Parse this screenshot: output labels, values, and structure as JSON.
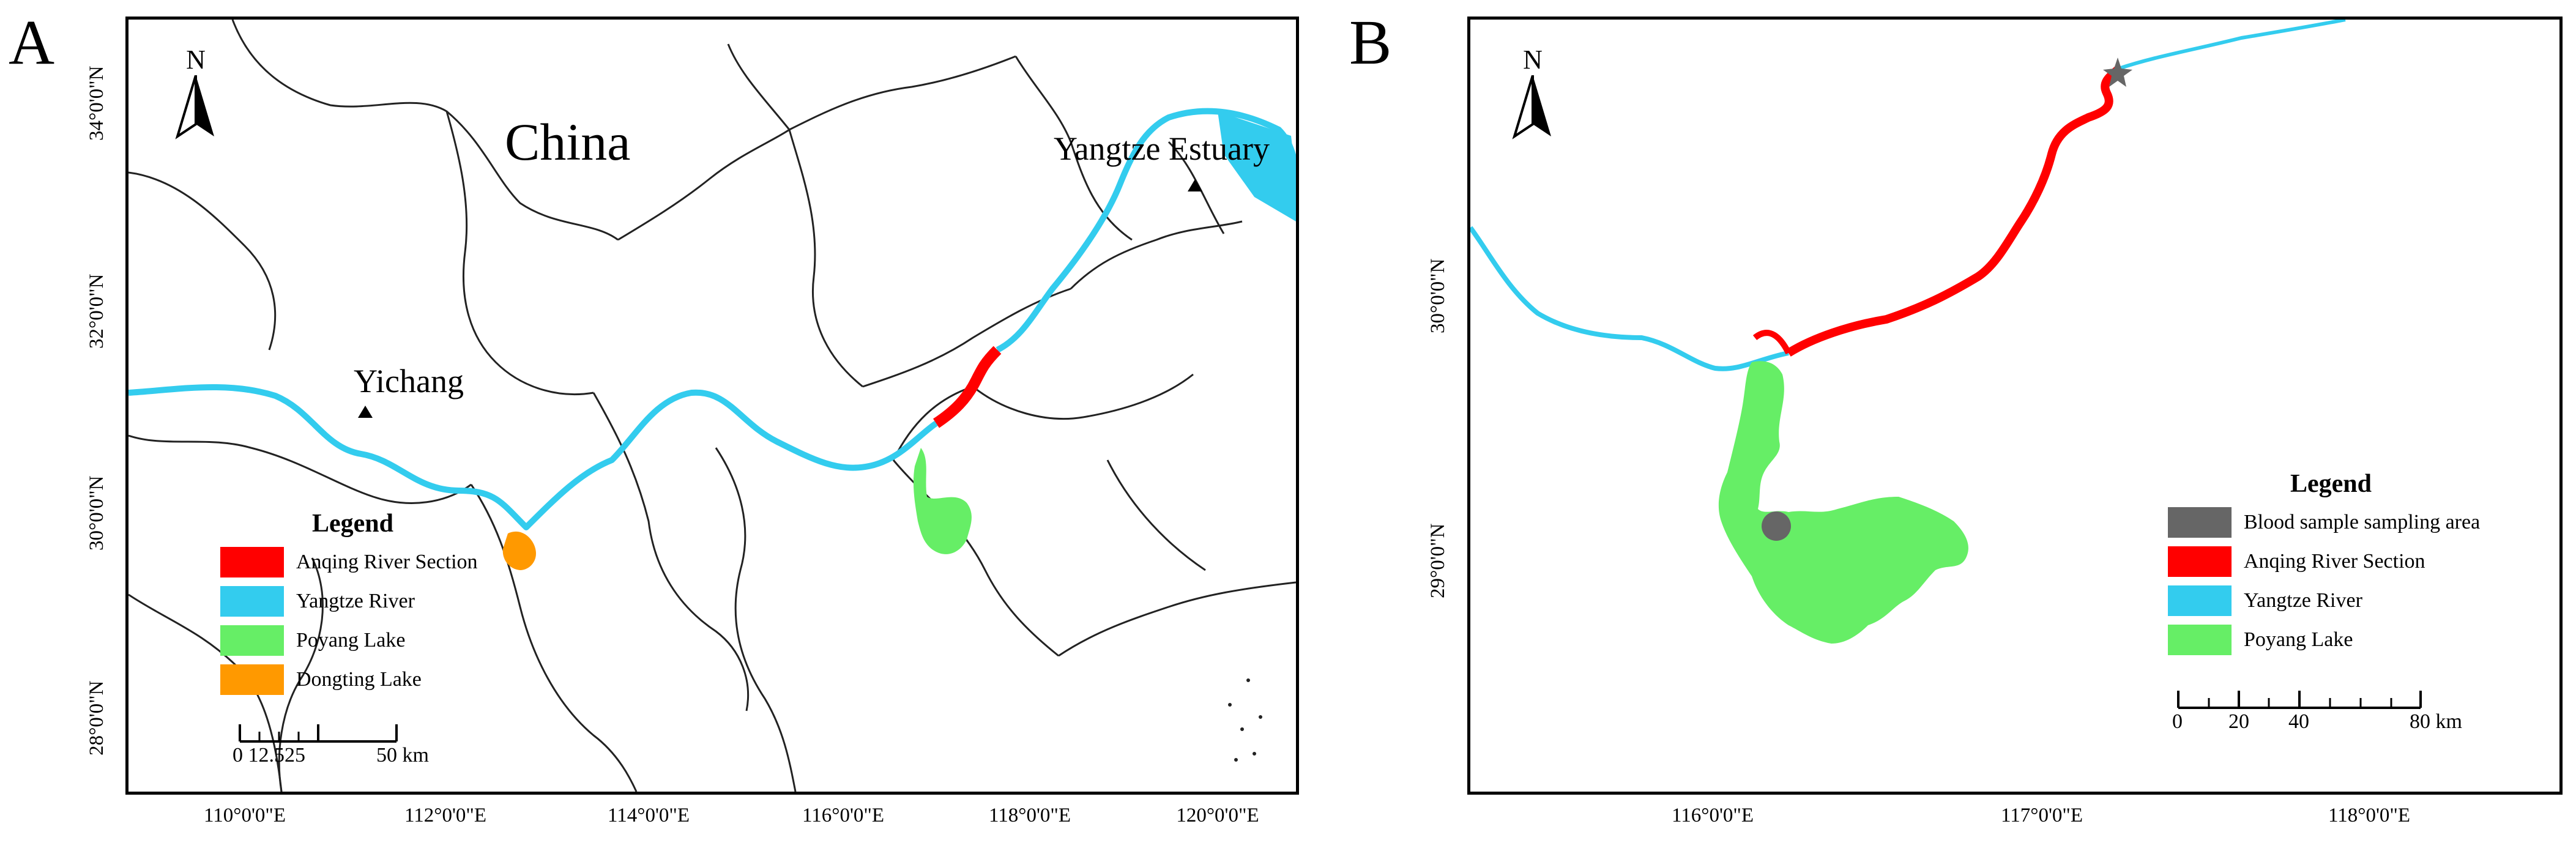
{
  "panels": {
    "a": {
      "letter": "A",
      "north_label": "N",
      "labels": {
        "china": "China",
        "estuary": "Yangtze Estuary",
        "yichang": "Yichang"
      },
      "x_ticks": [
        "110°0'0\"E",
        "112°0'0\"E",
        "114°0'0\"E",
        "116°0'0\"E",
        "118°0'0\"E",
        "120°0'0\"E"
      ],
      "y_ticks": [
        "34°0'0\"N",
        "32°0'0\"N",
        "30°0'0\"N",
        "28°0'0\"N"
      ],
      "legend": {
        "title": "Legend",
        "items": [
          {
            "label": "Anqing River Section",
            "color": "#ff0000"
          },
          {
            "label": "Yangtze River",
            "color": "#33ccee"
          },
          {
            "label": "Poyang Lake",
            "color": "#66ee66"
          },
          {
            "label": "Dongting Lake",
            "color": "#ff9900"
          }
        ]
      },
      "scale": {
        "ticks": "0 12.525",
        "end": "50 km"
      }
    },
    "b": {
      "letter": "B",
      "north_label": "N",
      "x_ticks": [
        "116°0'0\"E",
        "117°0'0\"E",
        "118°0'0\"E"
      ],
      "y_ticks": [
        "30°0'0\"N",
        "29°0'0\"N"
      ],
      "legend": {
        "title": "Legend",
        "items": [
          {
            "label": "Blood sample sampling area",
            "color": "#666666"
          },
          {
            "label": "Anqing River Section",
            "color": "#ff0000"
          },
          {
            "label": "Yangtze River",
            "color": "#33ccee"
          },
          {
            "label": "Poyang Lake",
            "color": "#66ee66"
          }
        ]
      },
      "scale": {
        "t0": "0",
        "t1": "20",
        "t2": "40",
        "end": "80 km"
      }
    }
  }
}
